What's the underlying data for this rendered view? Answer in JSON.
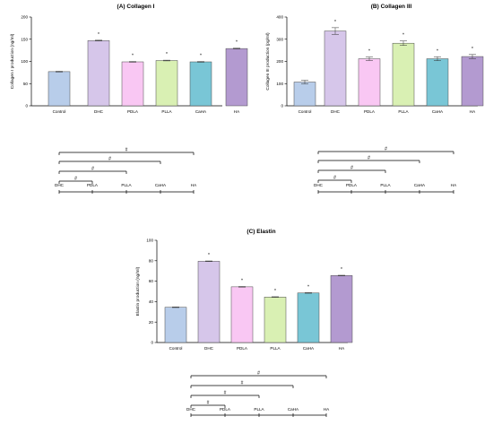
{
  "chart_data": [
    {
      "type": "bar",
      "title": "(A) Collagen I",
      "ylabel": "Collagen I production (ng/ml)",
      "xlabel": "",
      "categories": [
        "Control",
        "DHC",
        "PDLA",
        "PLLA",
        "CaHA",
        "HA"
      ],
      "values": [
        77,
        147,
        99,
        102,
        99,
        129
      ],
      "errors": [
        0.8,
        0.8,
        0.8,
        0.8,
        0.8,
        0.8
      ],
      "significance": [
        "",
        "*",
        "*",
        "*",
        "*",
        "*"
      ],
      "ylim": [
        0,
        200
      ],
      "yticks": [
        0,
        50,
        100,
        150,
        200
      ],
      "colors": [
        "#b8cdea",
        "#d6c6ea",
        "#f9c7f3",
        "#d9f0b3",
        "#79c6d6",
        "#b39ad0"
      ],
      "comparison": {
        "labels": [
          "DHC",
          "PDLA",
          "PLLA",
          "CaHA",
          "HA"
        ],
        "brackets": [
          {
            "from": "DHC",
            "to": "HA",
            "label": "#"
          },
          {
            "from": "DHC",
            "to": "CaHA",
            "label": "#"
          },
          {
            "from": "DHC",
            "to": "PLLA",
            "label": "#"
          },
          {
            "from": "DHC",
            "to": "PDLA",
            "label": "#"
          }
        ]
      }
    },
    {
      "type": "bar",
      "title": "(B) Collagen III",
      "ylabel": "Collagen III production (pg/ml)",
      "xlabel": "",
      "categories": [
        "Control",
        "DHC",
        "PDLA",
        "PLLA",
        "CaHA",
        "HA"
      ],
      "values": [
        107,
        337,
        212,
        282,
        212,
        222
      ],
      "errors": [
        8,
        15,
        8,
        10,
        9,
        9
      ],
      "significance": [
        "",
        "*",
        "*",
        "*",
        "*",
        "*"
      ],
      "ylim": [
        0,
        400
      ],
      "yticks": [
        0,
        100,
        200,
        300,
        400
      ],
      "colors": [
        "#b8cdea",
        "#d6c6ea",
        "#f9c7f3",
        "#d9f0b3",
        "#79c6d6",
        "#b39ad0"
      ],
      "comparison": {
        "labels": [
          "DHC",
          "PDLA",
          "PLLA",
          "CaHA",
          "HA"
        ],
        "brackets": [
          {
            "from": "DHC",
            "to": "HA",
            "label": "#"
          },
          {
            "from": "DHC",
            "to": "CaHA",
            "label": "#"
          },
          {
            "from": "DHC",
            "to": "PLLA",
            "label": "#"
          },
          {
            "from": "DHC",
            "to": "PDLA",
            "label": "#"
          }
        ]
      }
    },
    {
      "type": "bar",
      "title": "(C) Elastin",
      "ylabel": "Elastin production (ng/ml)",
      "xlabel": "",
      "categories": [
        "Control",
        "DHC",
        "PDLA",
        "PLLA",
        "CaHA",
        "HA"
      ],
      "values": [
        34.5,
        79.5,
        54.5,
        44.5,
        48.5,
        65.5
      ],
      "errors": [
        0.3,
        0.3,
        0.3,
        0.3,
        0.3,
        0.3
      ],
      "significance": [
        "",
        "*",
        "*",
        "*",
        "*",
        "*"
      ],
      "ylim": [
        0,
        100
      ],
      "yticks": [
        0,
        20,
        40,
        60,
        80,
        100
      ],
      "colors": [
        "#b8cdea",
        "#d6c6ea",
        "#f9c7f3",
        "#d9f0b3",
        "#79c6d6",
        "#b39ad0"
      ],
      "comparison": {
        "labels": [
          "DHC",
          "PDLA",
          "PLLA",
          "CaHA",
          "HA"
        ],
        "brackets": [
          {
            "from": "DHC",
            "to": "HA",
            "label": "#"
          },
          {
            "from": "DHC",
            "to": "CaHA",
            "label": "#"
          },
          {
            "from": "DHC",
            "to": "PLLA",
            "label": "#"
          },
          {
            "from": "DHC",
            "to": "PDLA",
            "label": "#"
          }
        ]
      }
    }
  ]
}
